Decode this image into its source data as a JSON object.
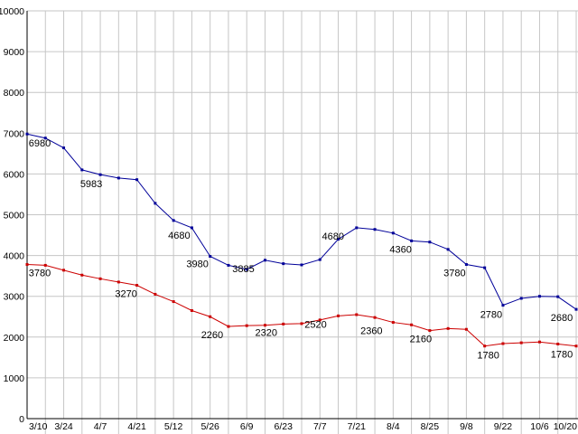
{
  "chart_data": {
    "type": "line",
    "title": "",
    "background": "#ffffff",
    "grid_color": "#c6c6c6",
    "axis_color": "#000000",
    "label_color": "#000000",
    "grid": true,
    "legend": "none",
    "ylim": [
      0,
      10000
    ],
    "y_ticks": [
      0,
      1000,
      2000,
      3000,
      4000,
      5000,
      6000,
      7000,
      8000,
      9000,
      10000
    ],
    "x_labels": [
      {
        "i": 0,
        "label": "3/10"
      },
      {
        "i": 2,
        "label": "3/24"
      },
      {
        "i": 4,
        "label": "4/7"
      },
      {
        "i": 6,
        "label": "4/21"
      },
      {
        "i": 8,
        "label": "5/12"
      },
      {
        "i": 10,
        "label": "5/26"
      },
      {
        "i": 12,
        "label": "6/9"
      },
      {
        "i": 14,
        "label": "6/23"
      },
      {
        "i": 16,
        "label": "7/7"
      },
      {
        "i": 18,
        "label": "7/21"
      },
      {
        "i": 20,
        "label": "8/4"
      },
      {
        "i": 22,
        "label": "8/25"
      },
      {
        "i": 24,
        "label": "9/8"
      },
      {
        "i": 26,
        "label": "9/22"
      },
      {
        "i": 28,
        "label": "10/6"
      },
      {
        "i": 30,
        "label": "10/20"
      }
    ],
    "series": [
      {
        "name": "series-blue",
        "color": "#000099",
        "values": [
          6980,
          6880,
          6640,
          6100,
          5983,
          5900,
          5860,
          5280,
          4860,
          4680,
          3980,
          3760,
          3660,
          3885,
          3800,
          3770,
          3900,
          4400,
          4680,
          4640,
          4550,
          4360,
          4330,
          4150,
          3780,
          3700,
          2780,
          2950,
          3000,
          2990,
          2680
        ],
        "labels": [
          {
            "i": 0,
            "text": "6980",
            "dx": 14,
            "dy": 14
          },
          {
            "i": 4,
            "text": "5983",
            "dx": -10,
            "dy": 14
          },
          {
            "i": 9,
            "text": "4680",
            "dx": -14,
            "dy": 12
          },
          {
            "i": 10,
            "text": "3980",
            "dx": -14,
            "dy": 12
          },
          {
            "i": 13,
            "text": "3885",
            "dx": -24,
            "dy": 13
          },
          {
            "i": 18,
            "text": "4680",
            "dx": -26,
            "dy": 13
          },
          {
            "i": 21,
            "text": "4360",
            "dx": -12,
            "dy": 13
          },
          {
            "i": 24,
            "text": "3780",
            "dx": -13,
            "dy": 13
          },
          {
            "i": 26,
            "text": "2780",
            "dx": -13,
            "dy": 14
          },
          {
            "i": 30,
            "text": "2680",
            "dx": -16,
            "dy": 13
          }
        ]
      },
      {
        "name": "series-red",
        "color": "#cc0000",
        "values": [
          3780,
          3760,
          3640,
          3520,
          3430,
          3350,
          3270,
          3050,
          2870,
          2650,
          2500,
          2260,
          2280,
          2290,
          2320,
          2330,
          2420,
          2520,
          2550,
          2480,
          2360,
          2300,
          2160,
          2210,
          2190,
          1780,
          1840,
          1860,
          1880,
          1830,
          1780
        ],
        "labels": [
          {
            "i": 0,
            "text": "3780",
            "dx": 14,
            "dy": 13
          },
          {
            "i": 6,
            "text": "3270",
            "dx": -12,
            "dy": 13
          },
          {
            "i": 11,
            "text": "2260",
            "dx": -18,
            "dy": 13
          },
          {
            "i": 14,
            "text": "2320",
            "dx": -19,
            "dy": 13
          },
          {
            "i": 17,
            "text": "2520",
            "dx": -25,
            "dy": 13
          },
          {
            "i": 20,
            "text": "2360",
            "dx": -24,
            "dy": 13
          },
          {
            "i": 22,
            "text": "2160",
            "dx": -10,
            "dy": 13
          },
          {
            "i": 25,
            "text": "1780",
            "dx": 4,
            "dy": 14
          },
          {
            "i": 30,
            "text": "1780",
            "dx": -16,
            "dy": 13
          }
        ]
      }
    ]
  }
}
